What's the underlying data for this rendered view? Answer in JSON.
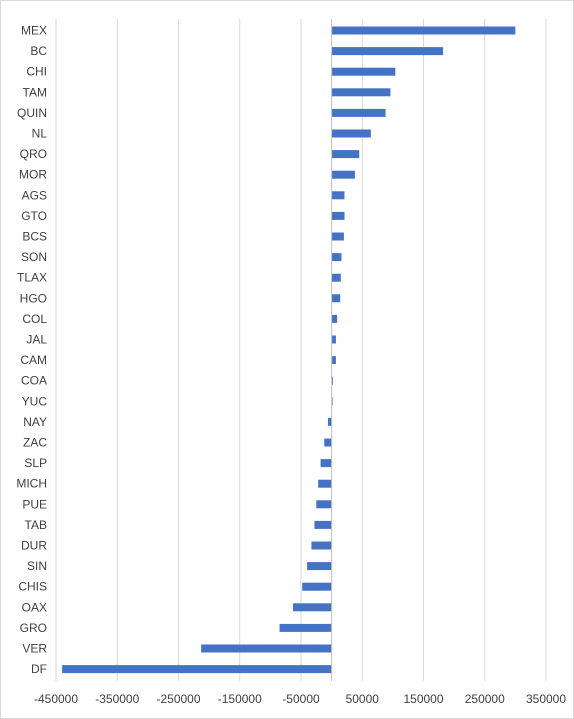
{
  "chart_data": {
    "type": "bar",
    "orientation": "horizontal",
    "title": "",
    "xlabel": "",
    "ylabel": "",
    "grid": true,
    "legend": "none",
    "bar_color": "#4472C4",
    "xlim": [
      -450000,
      350000
    ],
    "x_ticks": [
      -450000,
      -350000,
      -250000,
      -150000,
      -50000,
      50000,
      150000,
      250000,
      350000
    ],
    "x_tick_labels": [
      "-450000",
      "-350000",
      "-250000",
      "-150000",
      "-50000",
      "50000",
      "150000",
      "250000",
      "350000"
    ],
    "categories": [
      "MEX",
      "BC",
      "CHI",
      "TAM",
      "QUIN",
      "NL",
      "QRO",
      "MOR",
      "AGS",
      "GTO",
      "BCS",
      "SON",
      "TLAX",
      "HGO",
      "COL",
      "JAL",
      "CAM",
      "COA",
      "YUC",
      "NAY",
      "ZAC",
      "SLP",
      "MICH",
      "PUE",
      "TAB",
      "DUR",
      "SIN",
      "CHIS",
      "OAX",
      "GRO",
      "VER",
      "DF"
    ],
    "values": [
      300000,
      182000,
      104000,
      96000,
      88000,
      64000,
      45000,
      38000,
      21000,
      21000,
      20000,
      16000,
      15000,
      14000,
      9000,
      7000,
      7000,
      2000,
      1000,
      -6000,
      -12000,
      -18000,
      -22000,
      -25000,
      -28000,
      -33000,
      -40000,
      -48000,
      -63000,
      -85000,
      -213000,
      -440000
    ]
  }
}
